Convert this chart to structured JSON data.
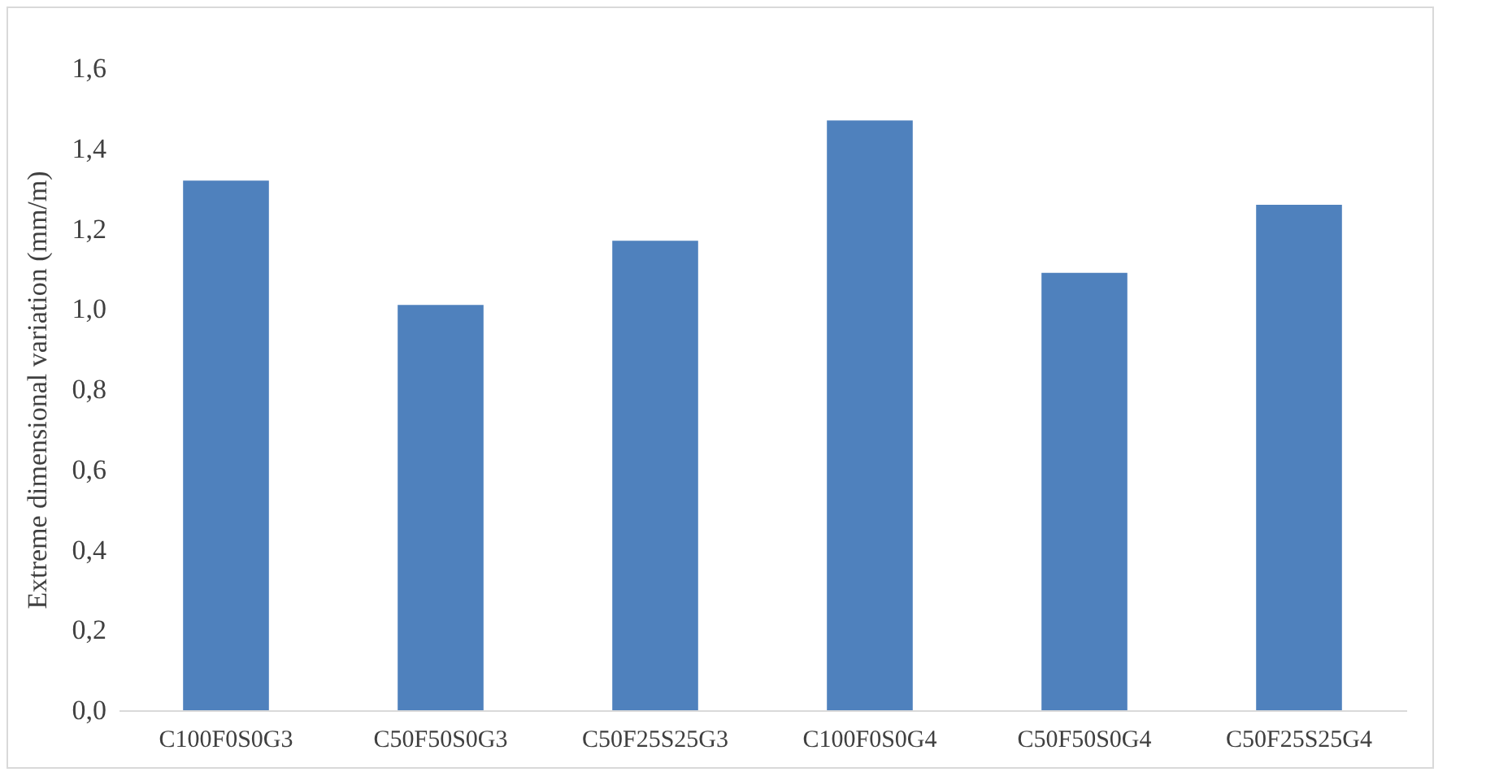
{
  "chart_data": {
    "type": "bar",
    "ylabel": "Extreme dimensional variation (mm/m)",
    "categories": [
      "C100F0S0G3",
      "C50F50S0G3",
      "C50F25S25G3",
      "C100F0S0G4",
      "C50F50S0G4",
      "C50F25S25G4"
    ],
    "values": [
      1.32,
      1.01,
      1.17,
      1.47,
      1.09,
      1.26
    ],
    "color": "#4f81bd",
    "ylim": [
      0,
      1.6
    ],
    "yticks": [
      {
        "value": 0,
        "label": "0,0"
      },
      {
        "value": 0.2,
        "label": "0,2"
      },
      {
        "value": 0.4,
        "label": "0,4"
      },
      {
        "value": 0.6,
        "label": "0,6"
      },
      {
        "value": 0.8,
        "label": "0,8"
      },
      {
        "value": 1.0,
        "label": "1,0"
      },
      {
        "value": 1.2,
        "label": "1,2"
      },
      {
        "value": 1.4,
        "label": "1,4"
      },
      {
        "value": 1.6,
        "label": "1,6"
      }
    ],
    "grid": false
  }
}
